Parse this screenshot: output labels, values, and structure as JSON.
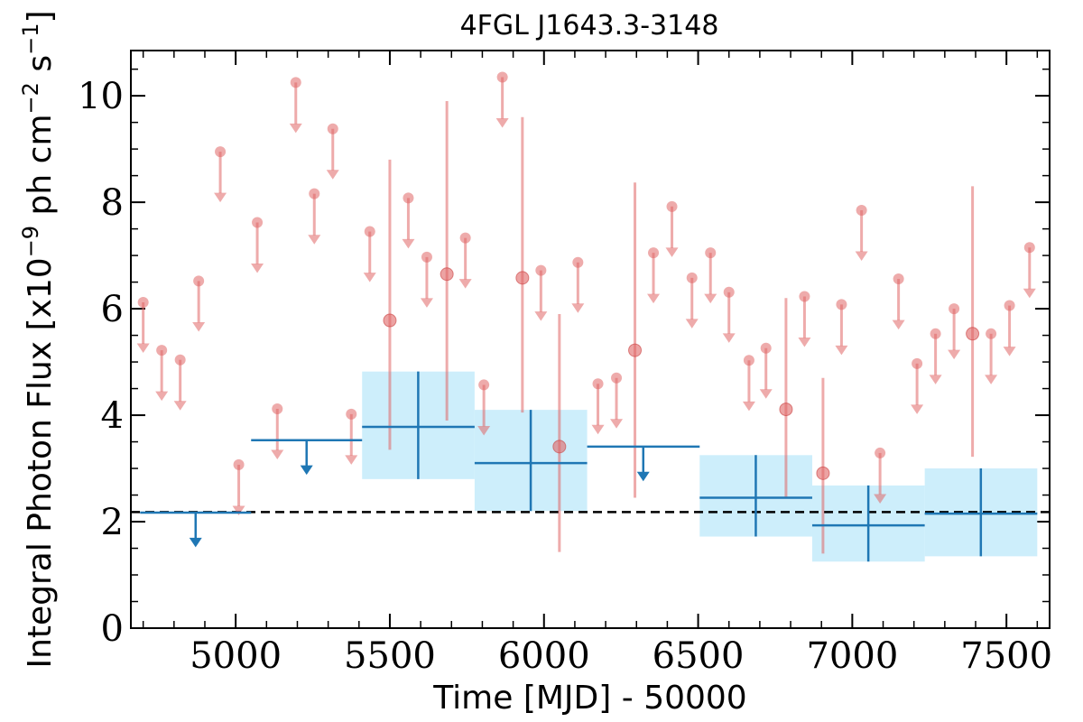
{
  "chart_data": {
    "type": "scatter",
    "title": "4FGL J1643.3-3148",
    "xlabel": "Time [MJD] - 50000",
    "ylabel": "Integral Photon Flux [x10",
    "ylabel_exp": "−9",
    "ylabel_units_a": " ph cm",
    "ylabel_units_exp_a": "−2",
    "ylabel_units_b": " s",
    "ylabel_units_exp_b": "−1",
    "ylabel_close": "]",
    "xlim": [
      4660,
      7640
    ],
    "ylim": [
      0,
      10.85
    ],
    "x_ticks": [
      5000,
      5500,
      6000,
      6500,
      7000,
      7500
    ],
    "y_ticks": [
      0,
      2,
      4,
      6,
      8,
      10
    ],
    "x_minor_step": 100,
    "y_minor_step": 0.5,
    "grid": false,
    "legend": "none",
    "colors": {
      "short_bins": "#e06666",
      "long_bins": "#1f77b4",
      "long_band": "#cdeefb",
      "reference_line": "#000000"
    },
    "reference_line": {
      "y": 2.18,
      "style": "dashed"
    },
    "short_bins_upper_limits": [
      {
        "x": 4700,
        "y": 6.12
      },
      {
        "x": 4760,
        "y": 5.22
      },
      {
        "x": 4820,
        "y": 5.04
      },
      {
        "x": 4880,
        "y": 6.52
      },
      {
        "x": 4950,
        "y": 8.95
      },
      {
        "x": 5010,
        "y": 3.07
      },
      {
        "x": 5070,
        "y": 7.62
      },
      {
        "x": 5135,
        "y": 4.12
      },
      {
        "x": 5195,
        "y": 10.25
      },
      {
        "x": 5255,
        "y": 8.16
      },
      {
        "x": 5315,
        "y": 9.38
      },
      {
        "x": 5375,
        "y": 4.02
      },
      {
        "x": 5435,
        "y": 7.45
      },
      {
        "x": 5560,
        "y": 8.08
      },
      {
        "x": 5620,
        "y": 6.97
      },
      {
        "x": 5745,
        "y": 7.33
      },
      {
        "x": 5805,
        "y": 4.57
      },
      {
        "x": 5865,
        "y": 10.35
      },
      {
        "x": 5990,
        "y": 6.72
      },
      {
        "x": 6110,
        "y": 6.87
      },
      {
        "x": 6175,
        "y": 4.59
      },
      {
        "x": 6235,
        "y": 4.7
      },
      {
        "x": 6355,
        "y": 7.05
      },
      {
        "x": 6415,
        "y": 7.92
      },
      {
        "x": 6480,
        "y": 6.58
      },
      {
        "x": 6540,
        "y": 7.05
      },
      {
        "x": 6600,
        "y": 6.31
      },
      {
        "x": 6665,
        "y": 5.03
      },
      {
        "x": 6720,
        "y": 5.26
      },
      {
        "x": 6845,
        "y": 6.23
      },
      {
        "x": 6965,
        "y": 6.08
      },
      {
        "x": 7030,
        "y": 7.85
      },
      {
        "x": 7090,
        "y": 3.29
      },
      {
        "x": 7150,
        "y": 6.56
      },
      {
        "x": 7210,
        "y": 4.97
      },
      {
        "x": 7270,
        "y": 5.53
      },
      {
        "x": 7330,
        "y": 6.0
      },
      {
        "x": 7450,
        "y": 5.53
      },
      {
        "x": 7510,
        "y": 6.06
      },
      {
        "x": 7575,
        "y": 7.15
      }
    ],
    "short_bins_detections": [
      {
        "x": 5500,
        "y": 5.78,
        "y_low": 3.35,
        "y_high": 8.8
      },
      {
        "x": 5685,
        "y": 6.65,
        "y_low": 3.9,
        "y_high": 9.9
      },
      {
        "x": 5930,
        "y": 6.58,
        "y_low": 4.05,
        "y_high": 9.6
      },
      {
        "x": 6050,
        "y": 3.41,
        "y_low": 1.43,
        "y_high": 5.9
      },
      {
        "x": 6295,
        "y": 5.22,
        "y_low": 2.45,
        "y_high": 8.37
      },
      {
        "x": 6785,
        "y": 4.11,
        "y_low": 2.45,
        "y_high": 6.2
      },
      {
        "x": 6905,
        "y": 2.91,
        "y_low": 1.4,
        "y_high": 4.7
      },
      {
        "x": 7390,
        "y": 5.53,
        "y_low": 3.22,
        "y_high": 8.3
      }
    ],
    "long_bins_upper_limits": [
      {
        "x0": 4690,
        "x1": 5050,
        "y": 2.17,
        "arrow_x": 4870
      },
      {
        "x0": 5050,
        "x1": 5410,
        "y": 3.53,
        "arrow_x": 5230
      },
      {
        "x0": 6140,
        "x1": 6505,
        "y": 3.41,
        "arrow_x": 6322
      }
    ],
    "long_bins_detections": [
      {
        "x0": 5410,
        "x1": 5775,
        "x": 5592,
        "y": 3.78,
        "y_low": 2.8,
        "y_high": 4.82
      },
      {
        "x0": 5775,
        "x1": 6140,
        "x": 5957,
        "y": 3.1,
        "y_low": 2.2,
        "y_high": 4.1
      },
      {
        "x0": 6505,
        "x1": 6870,
        "x": 6687,
        "y": 2.45,
        "y_low": 1.72,
        "y_high": 3.25
      },
      {
        "x0": 6870,
        "x1": 7235,
        "x": 7052,
        "y": 1.93,
        "y_low": 1.25,
        "y_high": 2.68
      },
      {
        "x0": 7235,
        "x1": 7600,
        "x": 7417,
        "y": 2.15,
        "y_low": 1.35,
        "y_high": 3.0
      }
    ]
  }
}
